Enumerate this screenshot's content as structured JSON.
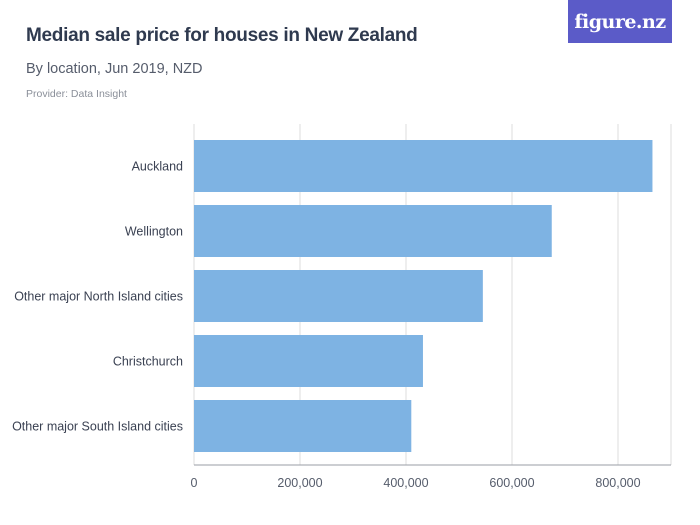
{
  "header": {
    "title": "Median sale price for houses in New Zealand",
    "subtitle": "By location, Jun 2019, NZD",
    "provider": "Provider: Data Insight"
  },
  "logo": {
    "text": "figure.nz"
  },
  "chart_data": {
    "type": "bar",
    "orientation": "horizontal",
    "title": "Median sale price for houses in New Zealand",
    "subtitle": "By location, Jun 2019, NZD",
    "categories": [
      "Auckland",
      "Wellington",
      "Other major North Island cities",
      "Christchurch",
      "Other major South Island cities"
    ],
    "values": [
      865000,
      675000,
      545000,
      432000,
      410000
    ],
    "xlabel": "",
    "ylabel": "",
    "xlim": [
      0,
      900000
    ],
    "ticks": [
      0,
      200000,
      400000,
      600000,
      800000
    ],
    "tick_labels": [
      "0",
      "200,000",
      "400,000",
      "600,000",
      "800,000"
    ],
    "grid": true,
    "bar_color": "#7eb3e3"
  }
}
